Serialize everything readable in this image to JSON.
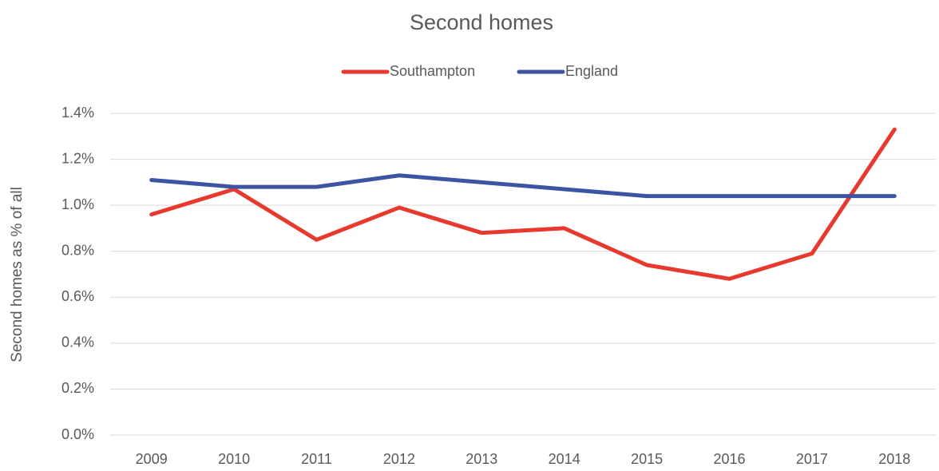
{
  "chart_data": {
    "type": "line",
    "title": "Second homes",
    "ylabel": "Second homes as % of all",
    "categories": [
      "2009",
      "2010",
      "2011",
      "2012",
      "2013",
      "2014",
      "2015",
      "2016",
      "2017",
      "2018"
    ],
    "series": [
      {
        "name": "Southampton",
        "color": "#e8392e",
        "values": [
          0.96,
          1.07,
          0.85,
          0.99,
          0.88,
          0.9,
          0.74,
          0.68,
          0.79,
          1.33
        ]
      },
      {
        "name": "England",
        "color": "#3d54a3",
        "values": [
          1.11,
          1.08,
          1.08,
          1.13,
          1.1,
          1.07,
          1.04,
          1.04,
          1.04,
          1.04
        ]
      }
    ],
    "ylim": [
      0,
      1.4
    ],
    "yticks": [
      {
        "value": 0,
        "label": "0.0%"
      },
      {
        "value": 0.2,
        "label": "0.2%"
      },
      {
        "value": 0.4,
        "label": "0.4%"
      },
      {
        "value": 0.6,
        "label": "0.6%"
      },
      {
        "value": 0.8,
        "label": "0.8%"
      },
      {
        "value": 1.0,
        "label": "1.0%"
      },
      {
        "value": 1.2,
        "label": "1.2%"
      },
      {
        "value": 1.4,
        "label": "1.4%"
      }
    ],
    "grid": true,
    "legend": "top"
  }
}
